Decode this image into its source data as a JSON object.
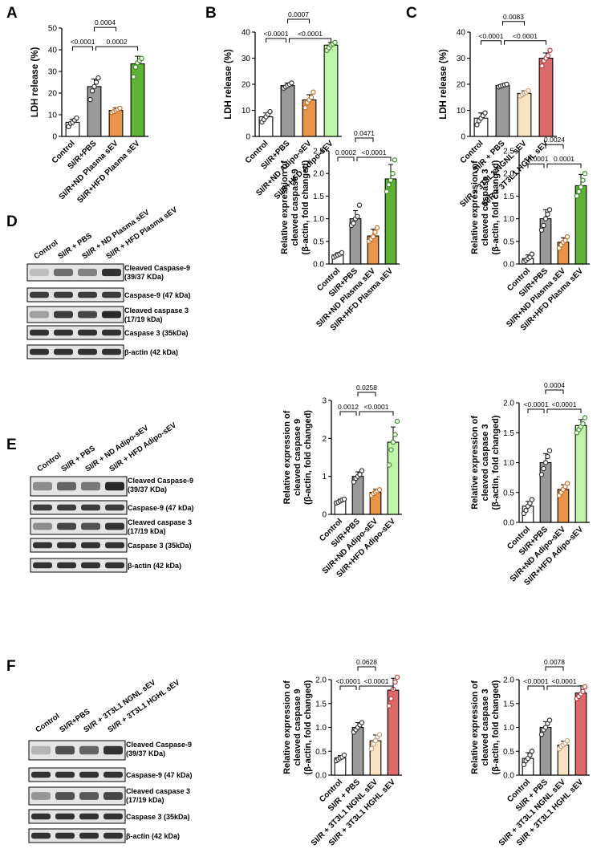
{
  "colors": {
    "control": "#ffffff",
    "pbs": "#9a9a9a",
    "nd_plasma": "#e8954a",
    "hfd_plasma": "#5fb334",
    "nd_adipo": "#e8954a",
    "hfd_adipo": "#bff5a8",
    "ngnl": "#f7e2c2",
    "hghl": "#dd6a6a",
    "point_control": "#333333",
    "point_pbs": "#333333",
    "point_nd_plasma": "#c46d2a",
    "point_hfd_plasma": "#3a8f22",
    "point_nd_adipo": "#c46d2a",
    "point_hfd_adipo": "#3a8f22",
    "point_ngnl": "#c8a27a",
    "point_hghl": "#b83a3a"
  },
  "panel_labels": [
    "A",
    "B",
    "C",
    "D",
    "E",
    "F"
  ],
  "chart_data": [
    {
      "id": "A",
      "type": "bar",
      "ylabel": "LDH release (%)",
      "ylim": [
        0,
        50
      ],
      "yticks": [
        0,
        10,
        20,
        30,
        40,
        50
      ],
      "categories": [
        "Control",
        "SI/R+PBS",
        "SI/R+ND Plasma sEV",
        "SI/R+HFD Plasma sEV"
      ],
      "values": [
        6.5,
        23,
        12,
        33.5
      ],
      "errors": [
        1.5,
        3.5,
        1.2,
        3.5
      ],
      "points": [
        [
          4.5,
          6,
          6.5,
          7.5,
          8.5
        ],
        [
          17,
          21,
          23,
          25,
          27
        ],
        [
          11,
          11.5,
          12,
          12.5,
          13
        ],
        [
          27.5,
          32,
          34,
          35,
          36
        ]
      ],
      "colors": [
        "control",
        "pbs",
        "nd_plasma",
        "hfd_plasma"
      ],
      "point_colors": [
        "point_control",
        "point_pbs",
        "point_nd_plasma",
        "point_hfd_plasma"
      ],
      "annotations": [
        {
          "text": "0.0004",
          "from": 1,
          "to": 2
        },
        {
          "text": "<0.0001",
          "from": 0,
          "to": 1
        },
        {
          "text": "0.0002",
          "from": 1,
          "to": 3
        }
      ]
    },
    {
      "id": "B",
      "type": "bar",
      "ylabel": "LDH release (%)",
      "ylim": [
        0,
        40
      ],
      "yticks": [
        0,
        10,
        20,
        30,
        40
      ],
      "categories": [
        "Control",
        "SI/R+PBS",
        "SI/R+ND Adipo-sEV",
        "SI/R+HFD Adipo-sEV"
      ],
      "values": [
        7.5,
        19.5,
        14,
        35
      ],
      "errors": [
        1.5,
        1,
        2,
        1
      ],
      "points": [
        [
          5.5,
          6.5,
          7.5,
          8.5,
          9.5
        ],
        [
          18.5,
          19,
          19.5,
          20,
          20.5
        ],
        [
          11,
          13,
          14,
          15,
          17
        ],
        [
          33,
          34,
          35,
          35.5,
          36
        ]
      ],
      "colors": [
        "control",
        "pbs",
        "nd_adipo",
        "hfd_adipo"
      ],
      "point_colors": [
        "point_control",
        "point_pbs",
        "point_nd_adipo",
        "point_hfd_adipo"
      ],
      "annotations": [
        {
          "text": "0.0007",
          "from": 1,
          "to": 2
        },
        {
          "text": "<0.0001",
          "from": 0,
          "to": 1
        },
        {
          "text": "<0.0001",
          "from": 1,
          "to": 3
        }
      ]
    },
    {
      "id": "C",
      "type": "bar",
      "ylabel": "LDH release (%)",
      "ylim": [
        0,
        40
      ],
      "yticks": [
        0,
        10,
        20,
        30,
        40
      ],
      "categories": [
        "Control",
        "SI/R + PBS",
        "SI/R + 3T3L1 NGNL sEV",
        "SI/R + 3T3L1 HGHL sEV"
      ],
      "values": [
        7,
        19.5,
        16.5,
        30
      ],
      "errors": [
        2,
        0.5,
        1,
        2
      ],
      "points": [
        [
          4.5,
          6,
          7,
          8,
          9
        ],
        [
          19,
          19.3,
          19.5,
          19.8,
          20
        ],
        [
          15.5,
          16,
          16.5,
          17,
          17.5
        ],
        [
          27,
          29,
          30,
          31,
          33
        ]
      ],
      "colors": [
        "control",
        "pbs",
        "ngnl",
        "hghl"
      ],
      "point_colors": [
        "point_control",
        "point_pbs",
        "point_ngnl",
        "point_hghl"
      ],
      "annotations": [
        {
          "text": "0.0083",
          "from": 1,
          "to": 2
        },
        {
          "text": "<0.0001",
          "from": 0,
          "to": 1
        },
        {
          "text": "<0.0001",
          "from": 1,
          "to": 3
        }
      ]
    },
    {
      "id": "D1",
      "type": "bar",
      "ylabel": "Relative expression of cleaved caspase 9 (β-actin, fold changed)",
      "ylim": [
        0,
        2.5
      ],
      "yticks": [
        0.0,
        0.5,
        1.0,
        1.5,
        2.0,
        2.5
      ],
      "categories": [
        "Control",
        "SI/R+PBS",
        "SI/R+ND Plasma sEV",
        "SI/R+HFD Plasma sEV"
      ],
      "values": [
        0.2,
        1.0,
        0.62,
        1.88
      ],
      "errors": [
        0.05,
        0.18,
        0.15,
        0.32
      ],
      "points": [
        [
          0.15,
          0.18,
          0.2,
          0.22,
          0.25
        ],
        [
          0.85,
          0.9,
          1.0,
          1.05,
          1.3
        ],
        [
          0.5,
          0.55,
          0.6,
          0.7,
          0.8
        ],
        [
          1.6,
          1.75,
          1.85,
          2.0,
          2.3
        ]
      ],
      "colors": [
        "control",
        "pbs",
        "nd_plasma",
        "hfd_plasma"
      ],
      "point_colors": [
        "point_control",
        "point_pbs",
        "point_nd_plasma",
        "point_hfd_plasma"
      ],
      "annotations": [
        {
          "text": "0.0471",
          "from": 1,
          "to": 2
        },
        {
          "text": "0.0002",
          "from": 0,
          "to": 1
        },
        {
          "text": "<0.0001",
          "from": 1,
          "to": 3
        }
      ]
    },
    {
      "id": "D2",
      "type": "bar",
      "ylabel": "Relative expression of cleaved caspase 3 (β-actin, fold changed)",
      "ylim": [
        0,
        2.5
      ],
      "yticks": [
        0.0,
        0.5,
        1.0,
        1.5,
        2.0,
        2.5
      ],
      "categories": [
        "Control",
        "SI/R+PBS",
        "SI/R+ND Plasma sEV",
        "SI/R+HFD Plasma sEV"
      ],
      "values": [
        0.12,
        1.0,
        0.48,
        1.73
      ],
      "errors": [
        0.08,
        0.2,
        0.1,
        0.25
      ],
      "points": [
        [
          0.05,
          0.08,
          0.12,
          0.15,
          0.22
        ],
        [
          0.75,
          0.85,
          1.0,
          1.1,
          1.2
        ],
        [
          0.35,
          0.42,
          0.48,
          0.52,
          0.6
        ],
        [
          1.5,
          1.6,
          1.7,
          1.85,
          2.0
        ]
      ],
      "colors": [
        "control",
        "pbs",
        "nd_plasma",
        "hfd_plasma"
      ],
      "point_colors": [
        "point_control",
        "point_pbs",
        "point_nd_plasma",
        "point_hfd_plasma"
      ],
      "annotations": [
        {
          "text": "0.0024",
          "from": 1,
          "to": 2
        },
        {
          "text": "<0.0001",
          "from": 0,
          "to": 1
        },
        {
          "text": "0.0001",
          "from": 1,
          "to": 3
        }
      ]
    },
    {
      "id": "E1",
      "type": "bar",
      "ylabel": "Relative expression of cleaved caspase 9 (β-actin, fold changed)",
      "ylim": [
        0,
        3
      ],
      "yticks": [
        0,
        1,
        2,
        3
      ],
      "categories": [
        "Control",
        "SI/R+PBS",
        "SI/R+ND Adipo-sEV",
        "SI/R+HFD Adipo-sEV"
      ],
      "values": [
        0.35,
        1.0,
        0.58,
        1.9
      ],
      "errors": [
        0.05,
        0.12,
        0.08,
        0.4
      ],
      "points": [
        [
          0.3,
          0.32,
          0.35,
          0.38,
          0.4
        ],
        [
          0.85,
          0.95,
          1.0,
          1.05,
          1.15
        ],
        [
          0.5,
          0.55,
          0.58,
          0.62,
          0.65
        ],
        [
          1.3,
          1.7,
          1.9,
          2.1,
          2.45
        ]
      ],
      "colors": [
        "control",
        "pbs",
        "nd_adipo",
        "hfd_adipo"
      ],
      "point_colors": [
        "point_control",
        "point_pbs",
        "point_nd_adipo",
        "point_hfd_adipo"
      ],
      "annotations": [
        {
          "text": "0.0258",
          "from": 1,
          "to": 2
        },
        {
          "text": "0.0012",
          "from": 0,
          "to": 1
        },
        {
          "text": "<0.0001",
          "from": 1,
          "to": 3
        }
      ]
    },
    {
      "id": "E2",
      "type": "bar",
      "ylabel": "Relative expression of cleaved caspase 3 (β-actin, fold changed)",
      "ylim": [
        0,
        2.0
      ],
      "yticks": [
        0.0,
        0.5,
        1.0,
        1.5,
        2.0
      ],
      "categories": [
        "Control",
        "SI/R+PBS",
        "SI/R+ND Adipo-sEV",
        "SI/R+HFD Adipo-sEV"
      ],
      "values": [
        0.27,
        1.0,
        0.55,
        1.62
      ],
      "errors": [
        0.08,
        0.15,
        0.08,
        0.1
      ],
      "points": [
        [
          0.15,
          0.2,
          0.27,
          0.32,
          0.38
        ],
        [
          0.8,
          0.9,
          1.0,
          1.1,
          1.2
        ],
        [
          0.45,
          0.5,
          0.55,
          0.6,
          0.65
        ],
        [
          1.5,
          1.55,
          1.6,
          1.65,
          1.75
        ]
      ],
      "colors": [
        "control",
        "pbs",
        "nd_adipo",
        "hfd_adipo"
      ],
      "point_colors": [
        "point_control",
        "point_pbs",
        "point_nd_adipo",
        "point_hfd_adipo"
      ],
      "annotations": [
        {
          "text": "0.0004",
          "from": 1,
          "to": 2
        },
        {
          "text": "<0.0001",
          "from": 0,
          "to": 1
        },
        {
          "text": "<0.0001",
          "from": 1,
          "to": 3
        }
      ]
    },
    {
      "id": "F1",
      "type": "bar",
      "ylabel": "Relative expression of cleaved caspase 9 (β-actin, fold changed)",
      "ylim": [
        0,
        2.0
      ],
      "yticks": [
        0.0,
        0.5,
        1.0,
        1.5,
        2.0
      ],
      "categories": [
        "Control",
        "SI/R + PBS",
        "SI/R + 3T3L1 NGNL sEV",
        "SI/R + 3T3L1 HGHL sEV"
      ],
      "values": [
        0.36,
        1.0,
        0.72,
        1.78
      ],
      "errors": [
        0.05,
        0.1,
        0.12,
        0.25
      ],
      "points": [
        [
          0.3,
          0.33,
          0.36,
          0.38,
          0.42
        ],
        [
          0.9,
          0.95,
          1.0,
          1.05,
          1.1
        ],
        [
          0.55,
          0.65,
          0.72,
          0.8,
          0.85
        ],
        [
          1.45,
          1.6,
          1.8,
          1.95,
          2.05
        ]
      ],
      "colors": [
        "control",
        "pbs",
        "ngnl",
        "hghl"
      ],
      "point_colors": [
        "point_control",
        "point_pbs",
        "point_ngnl",
        "point_hghl"
      ],
      "annotations": [
        {
          "text": "0.0628",
          "from": 1,
          "to": 2
        },
        {
          "text": "<0.0001",
          "from": 0,
          "to": 1
        },
        {
          "text": "<0.0001",
          "from": 1,
          "to": 3
        }
      ]
    },
    {
      "id": "F2",
      "type": "bar",
      "ylabel": "Relative expression of cleaved caspase 3 (β-actin, fold changed)",
      "ylim": [
        0,
        2.0
      ],
      "yticks": [
        0.0,
        0.5,
        1.0,
        1.5,
        2.0
      ],
      "categories": [
        "Control",
        "SI/R + PBS",
        "SI/R + 3T3L1 NGNL sEV",
        "SI/R + 3T3L1 HGHL sEV"
      ],
      "values": [
        0.35,
        1.0,
        0.63,
        1.72
      ],
      "errors": [
        0.12,
        0.12,
        0.08,
        0.15
      ],
      "points": [
        [
          0.22,
          0.3,
          0.35,
          0.42,
          0.5
        ],
        [
          0.85,
          0.95,
          1.0,
          1.08,
          1.15
        ],
        [
          0.55,
          0.6,
          0.63,
          0.67,
          0.72
        ],
        [
          1.6,
          1.65,
          1.7,
          1.75,
          1.85
        ]
      ],
      "colors": [
        "control",
        "pbs",
        "ngnl",
        "hghl"
      ],
      "point_colors": [
        "point_control",
        "point_pbs",
        "point_ngnl",
        "point_hghl"
      ],
      "annotations": [
        {
          "text": "0.0078",
          "from": 1,
          "to": 2
        },
        {
          "text": "<0.0001",
          "from": 0,
          "to": 1
        },
        {
          "text": "<0.0001",
          "from": 1,
          "to": 3
        }
      ]
    }
  ],
  "blots": [
    {
      "id": "D",
      "lanes": [
        "Control",
        "SI/R + PBS",
        "SI/R + ND Plasma sEV",
        "SI/R + HFD Plasma sEV"
      ],
      "rows": [
        {
          "label": [
            "Cleaved Caspase-9",
            "(39/37 KDa)"
          ],
          "intensity": [
            0.15,
            0.55,
            0.45,
            0.85
          ]
        },
        {
          "label": [
            "Caspase-9 (47 kDa)"
          ],
          "intensity": [
            0.8,
            0.8,
            0.8,
            0.8
          ]
        },
        {
          "label": [
            "Cleaved caspase 3",
            "(17/19 kDa)"
          ],
          "intensity": [
            0.3,
            0.8,
            0.75,
            0.9
          ]
        },
        {
          "label": [
            "Caspase 3 (35kDa)"
          ],
          "intensity": [
            0.85,
            0.85,
            0.85,
            0.85
          ]
        },
        {
          "label": [
            "β-actin (42 kDa)"
          ],
          "intensity": [
            0.85,
            0.85,
            0.85,
            0.85
          ]
        }
      ]
    },
    {
      "id": "E",
      "lanes": [
        "Control",
        "SI/R + PBS",
        "SI/R + ND Adipo-sEV",
        "SI/R + HFD Adipo-sEV"
      ],
      "rows": [
        {
          "label": [
            "Cleaved Caspase-9",
            "(39/37 KDa)"
          ],
          "intensity": [
            0.4,
            0.6,
            0.5,
            0.9
          ]
        },
        {
          "label": [
            "Caspase-9 (47 kDa)"
          ],
          "intensity": [
            0.8,
            0.8,
            0.8,
            0.8
          ]
        },
        {
          "label": [
            "Cleaved caspase 3",
            "(17/19 kDa)"
          ],
          "intensity": [
            0.4,
            0.75,
            0.7,
            0.85
          ]
        },
        {
          "label": [
            "Caspase 3 (35kDa)"
          ],
          "intensity": [
            0.85,
            0.85,
            0.85,
            0.85
          ]
        },
        {
          "label": [
            "β-actin (42 kDa)"
          ],
          "intensity": [
            0.85,
            0.85,
            0.85,
            0.85
          ]
        }
      ]
    },
    {
      "id": "F",
      "lanes": [
        "Control",
        "SI/R+PBS",
        "SI/R + 3T3L1 NGNL sEV",
        "SI/R + 3T3L1 HGHL sEV"
      ],
      "rows": [
        {
          "label": [
            "Cleaved Caspase-9",
            "(39/37 KDa)"
          ],
          "intensity": [
            0.2,
            0.7,
            0.6,
            0.85
          ]
        },
        {
          "label": [
            "Caspase-9 (47 kDa)"
          ],
          "intensity": [
            0.85,
            0.85,
            0.85,
            0.85
          ]
        },
        {
          "label": [
            "Cleaved caspase 3",
            "(17/19 kDa)"
          ],
          "intensity": [
            0.35,
            0.7,
            0.65,
            0.75
          ]
        },
        {
          "label": [
            "Caspase 3 (35kDa)"
          ],
          "intensity": [
            0.85,
            0.85,
            0.85,
            0.85
          ]
        },
        {
          "label": [
            "β-actin (42 kDa)"
          ],
          "intensity": [
            0.85,
            0.85,
            0.85,
            0.85
          ]
        }
      ]
    }
  ]
}
